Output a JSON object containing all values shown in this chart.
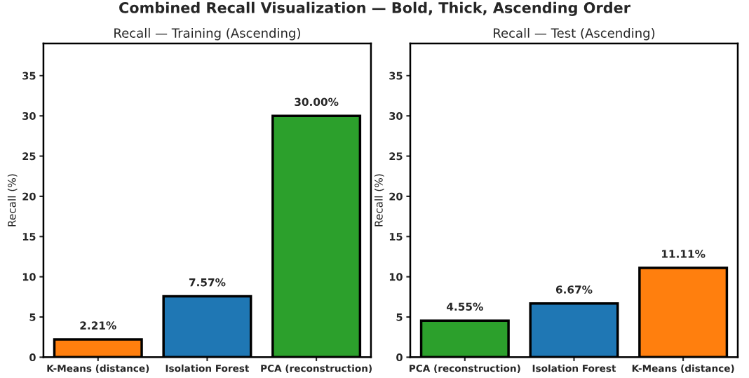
{
  "chart_data": [
    {
      "type": "bar",
      "title": "Recall — Training (Ascending)",
      "annotations": [
        "Combined Recall Visualization — Bold, Thick, Ascending Order"
      ],
      "ylabel": "Recall (%)",
      "categories": [
        "K-Means (distance)",
        "Isolation Forest",
        "PCA (reconstruction)"
      ],
      "values": [
        2.21,
        7.57,
        30.0
      ],
      "colors": [
        "#ff7f0e",
        "#1f77b4",
        "#2ca02c"
      ],
      "value_labels": [
        "2.21%",
        "7.57%",
        "30.00%"
      ],
      "ylim": [
        0,
        39
      ],
      "yticks": [
        0,
        5,
        10,
        15,
        20,
        25,
        30,
        35
      ],
      "grid": false,
      "legend": false
    },
    {
      "type": "bar",
      "title": "Recall — Test (Ascending)",
      "ylabel": "Recall (%)",
      "categories": [
        "PCA (reconstruction)",
        "Isolation Forest",
        "K-Means (distance)"
      ],
      "values": [
        4.55,
        6.67,
        11.11
      ],
      "colors": [
        "#2ca02c",
        "#1f77b4",
        "#ff7f0e"
      ],
      "value_labels": [
        "4.55%",
        "6.67%",
        "11.11%"
      ],
      "ylim": [
        0,
        39
      ],
      "yticks": [
        0,
        5,
        10,
        15,
        20,
        25,
        30,
        35
      ],
      "grid": false,
      "legend": false
    }
  ]
}
